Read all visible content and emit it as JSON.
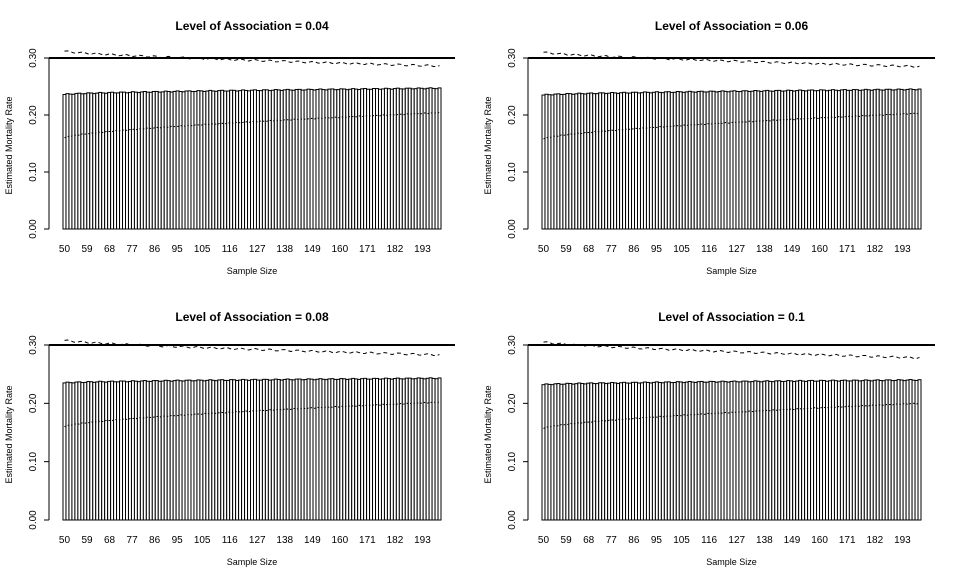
{
  "chart_data": [
    {
      "type": "bar",
      "title": "Level of Association = 0.04",
      "xlabel": "Sample Size",
      "ylabel": "Estimated Mortality Rate",
      "ylim": [
        0,
        0.3
      ],
      "yticks": [
        "0.00",
        "0.10",
        "0.20",
        "0.30"
      ],
      "x_tick_labels": [
        "50",
        "59",
        "68",
        "77",
        "86",
        "95",
        "105",
        "116",
        "127",
        "138",
        "149",
        "160",
        "171",
        "182",
        "193"
      ],
      "x_range": [
        50,
        200
      ],
      "reference_line": 0.3,
      "bar_start": 0.236,
      "bar_end": 0.247,
      "lower_start": 0.16,
      "lower_end": 0.204,
      "upper_start": 0.312,
      "upper_end": 0.286
    },
    {
      "type": "bar",
      "title": "Level of Association = 0.06",
      "xlabel": "Sample Size",
      "ylabel": "Estimated Mortality Rate",
      "ylim": [
        0,
        0.3
      ],
      "yticks": [
        "0.00",
        "0.10",
        "0.20",
        "0.30"
      ],
      "x_tick_labels": [
        "50",
        "59",
        "68",
        "77",
        "86",
        "95",
        "105",
        "116",
        "127",
        "138",
        "149",
        "160",
        "171",
        "182",
        "193"
      ],
      "x_range": [
        50,
        200
      ],
      "reference_line": 0.3,
      "bar_start": 0.235,
      "bar_end": 0.245,
      "lower_start": 0.158,
      "lower_end": 0.203,
      "upper_start": 0.31,
      "upper_end": 0.285
    },
    {
      "type": "bar",
      "title": "Level of Association = 0.08",
      "xlabel": "Sample Size",
      "ylabel": "Estimated Mortality Rate",
      "ylim": [
        0,
        0.3
      ],
      "yticks": [
        "0.00",
        "0.10",
        "0.20",
        "0.30"
      ],
      "x_tick_labels": [
        "50",
        "59",
        "68",
        "77",
        "86",
        "95",
        "105",
        "116",
        "127",
        "138",
        "149",
        "160",
        "171",
        "182",
        "193"
      ],
      "x_range": [
        50,
        200
      ],
      "reference_line": 0.3,
      "bar_start": 0.235,
      "bar_end": 0.243,
      "lower_start": 0.16,
      "lower_end": 0.202,
      "upper_start": 0.308,
      "upper_end": 0.283
    },
    {
      "type": "bar",
      "title": "Level of Association = 0.1",
      "xlabel": "Sample Size",
      "ylabel": "Estimated Mortality Rate",
      "ylim": [
        0,
        0.3
      ],
      "yticks": [
        "0.00",
        "0.10",
        "0.20",
        "0.30"
      ],
      "x_tick_labels": [
        "50",
        "59",
        "68",
        "77",
        "86",
        "95",
        "105",
        "116",
        "127",
        "138",
        "149",
        "160",
        "171",
        "182",
        "193"
      ],
      "x_range": [
        50,
        200
      ],
      "reference_line": 0.3,
      "bar_start": 0.232,
      "bar_end": 0.24,
      "lower_start": 0.157,
      "lower_end": 0.2,
      "upper_start": 0.305,
      "upper_end": 0.278
    }
  ]
}
